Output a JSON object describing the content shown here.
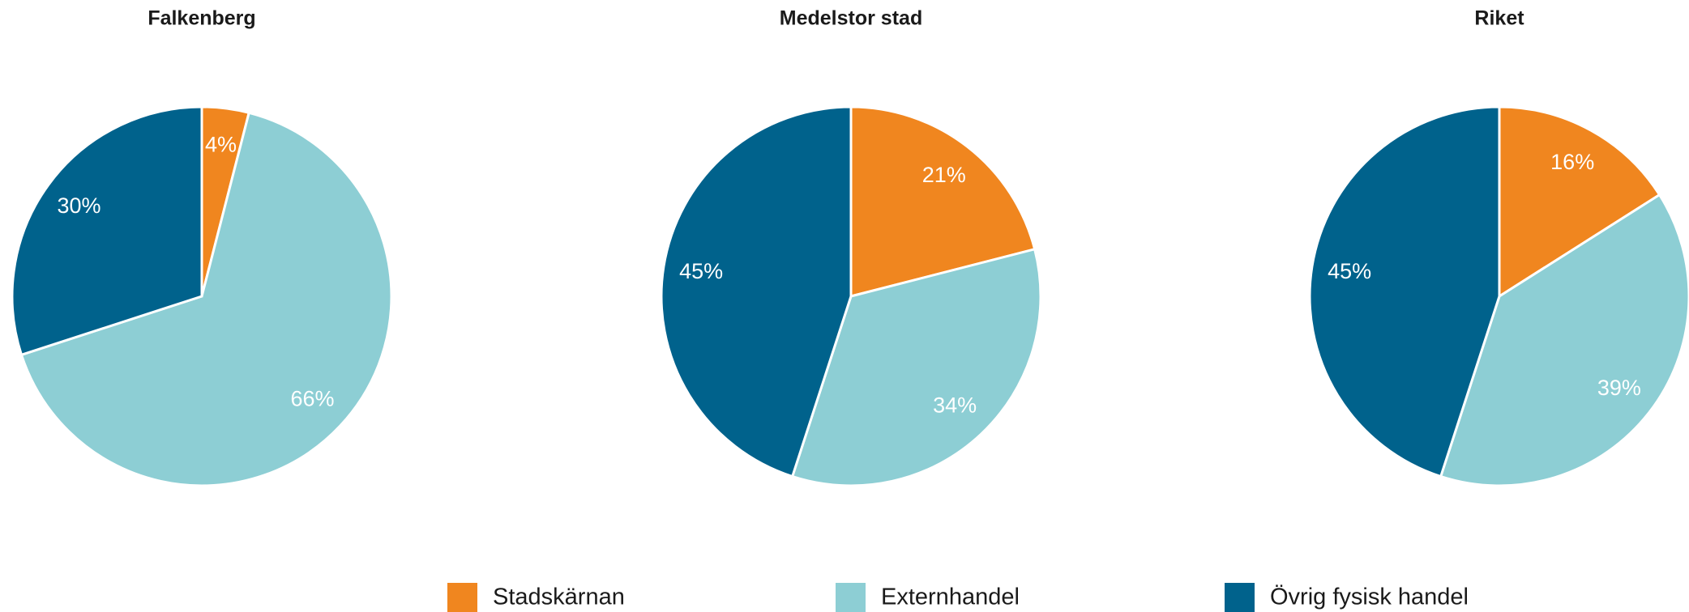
{
  "chart_data": [
    {
      "type": "pie",
      "title": "Falkenberg",
      "categories": [
        "Stadskärnan",
        "Externhandel",
        "Övrig fysisk handel"
      ],
      "values": [
        4,
        66,
        30
      ],
      "value_labels": [
        "4%",
        "66%",
        "30%"
      ],
      "colors": [
        "#f0861f",
        "#8dced4",
        "#00628c"
      ]
    },
    {
      "type": "pie",
      "title": "Medelstor stad",
      "categories": [
        "Stadskärnan",
        "Externhandel",
        "Övrig fysisk handel"
      ],
      "values": [
        21,
        34,
        45
      ],
      "value_labels": [
        "21%",
        "34%",
        "45%"
      ],
      "colors": [
        "#f0861f",
        "#8dced4",
        "#00628c"
      ]
    },
    {
      "type": "pie",
      "title": "Riket",
      "categories": [
        "Stadskärnan",
        "Externhandel",
        "Övrig fysisk handel"
      ],
      "values": [
        16,
        39,
        45
      ],
      "value_labels": [
        "16%",
        "39%",
        "45%"
      ],
      "colors": [
        "#f0861f",
        "#8dced4",
        "#00628c"
      ]
    }
  ]
}
